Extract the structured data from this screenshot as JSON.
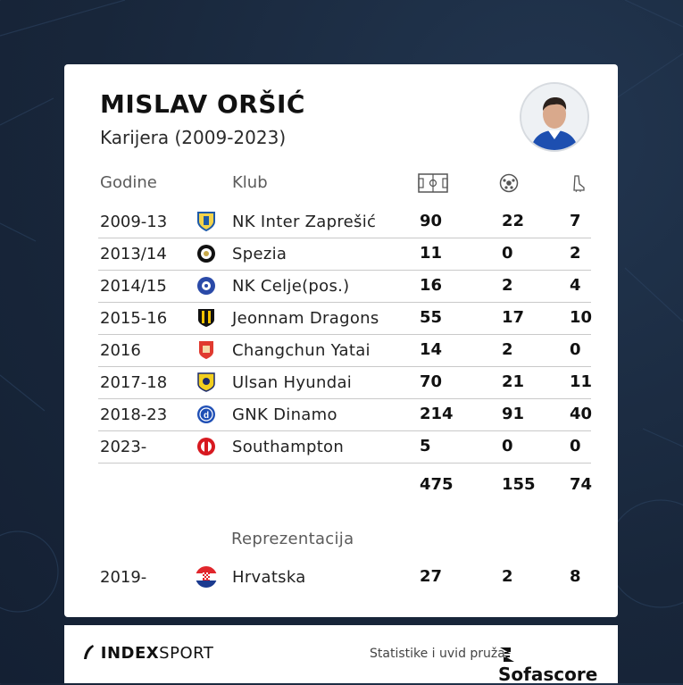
{
  "player": {
    "name": "MISLAV ORŠIĆ",
    "subtitle": "Karijera (2009-2023)"
  },
  "headers": {
    "years": "Godine",
    "club": "Klub",
    "apps_icon": "pitch-icon",
    "goals_icon": "ball-icon",
    "assists_icon": "boot-icon"
  },
  "rows": [
    {
      "years": "2009-13",
      "club": "NK Inter Zaprešić",
      "apps": "90",
      "goals": "22",
      "assists": "7"
    },
    {
      "years": "2013/14",
      "club": "Spezia",
      "apps": "11",
      "goals": "0",
      "assists": "2"
    },
    {
      "years": "2014/15",
      "club": "NK Celje(pos.)",
      "apps": "16",
      "goals": "2",
      "assists": "4"
    },
    {
      "years": "2015-16",
      "club": "Jeonnam Dragons",
      "apps": "55",
      "goals": "17",
      "assists": "10"
    },
    {
      "years": "2016",
      "club": "Changchun Yatai",
      "apps": "14",
      "goals": "2",
      "assists": "0"
    },
    {
      "years": "2017-18",
      "club": "Ulsan Hyundai",
      "apps": "70",
      "goals": "21",
      "assists": "11"
    },
    {
      "years": "2018-23",
      "club": "GNK Dinamo",
      "apps": "214",
      "goals": "91",
      "assists": "40"
    },
    {
      "years": "2023-",
      "club": "Southampton",
      "apps": "5",
      "goals": "0",
      "assists": "0"
    }
  ],
  "totals": {
    "apps": "475",
    "goals": "155",
    "assists": "74"
  },
  "national": {
    "label": "Reprezentacija",
    "years": "2019-",
    "team": "Hrvatska",
    "apps": "27",
    "goals": "2",
    "assists": "8"
  },
  "footer": {
    "brand_bold": "INDEX",
    "brand_light": "SPORT",
    "credit": "Statistike i uvid pruža",
    "provider": "Sofascore"
  },
  "colors": {
    "background": "#1b2a3e",
    "card": "#ffffff",
    "divider": "#c9c9c9"
  }
}
